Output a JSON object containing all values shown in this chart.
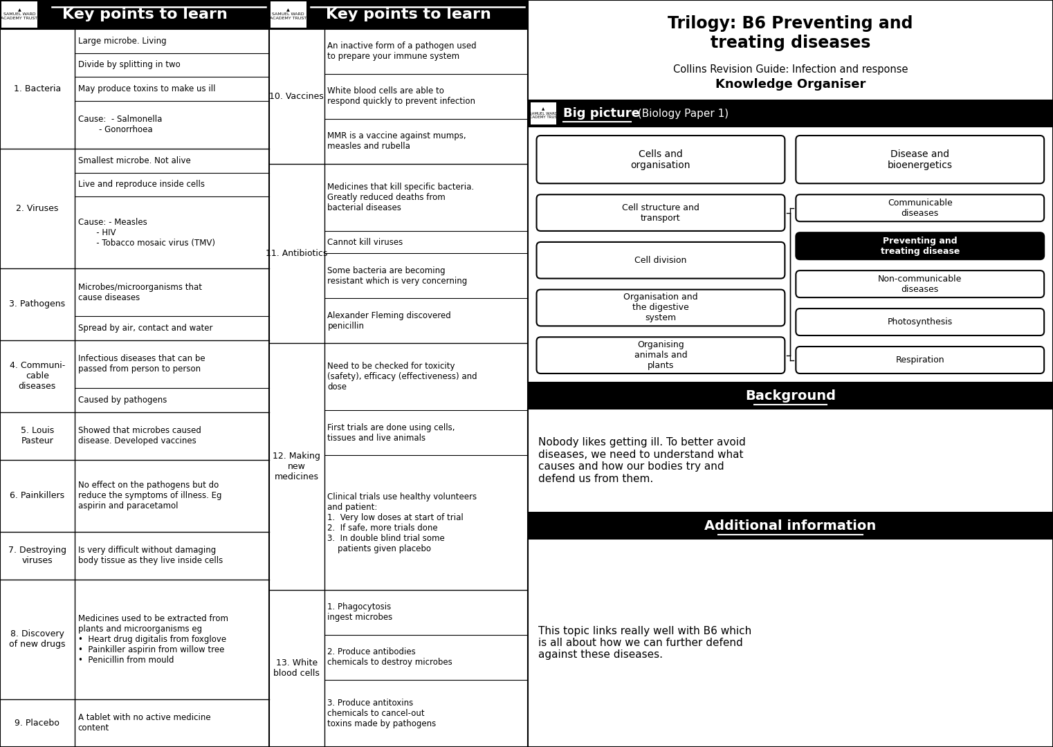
{
  "title_main": "Trilogy: B6 Preventing and\ntreating diseases",
  "title_sub": "Collins Revision Guide: Infection and response",
  "title_ko": "Knowledge Organiser",
  "header_left": "Key points to learn",
  "header_right": "Key points to learn",
  "bg_color": "#ffffff",
  "left_items": [
    {
      "number": "1. Bacteria",
      "facts": [
        "Large microbe. Living",
        "Divide by splitting in two",
        "May produce toxins to make us ill",
        "Cause:  - Salmonella\n        - Gonorrhoea"
      ]
    },
    {
      "number": "2. Viruses",
      "facts": [
        "Smallest microbe. Not alive",
        "Live and reproduce inside cells",
        "Cause: - Measles\n       - HIV\n       - Tobacco mosaic virus (TMV)"
      ]
    },
    {
      "number": "3. Pathogens",
      "facts": [
        "Microbes/microorganisms that\ncause diseases",
        "Spread by air, contact and water"
      ]
    },
    {
      "number": "4. Communi-\ncable\ndiseases",
      "facts": [
        "Infectious diseases that can be\npassed from person to person",
        "Caused by pathogens"
      ]
    },
    {
      "number": "5. Louis\nPasteur",
      "facts": [
        "Showed that microbes caused\ndisease. Developed vaccines"
      ]
    },
    {
      "number": "6. Painkillers",
      "facts": [
        "No effect on the pathogens but do\nreduce the symptoms of illness. Eg\naspirin and paracetamol"
      ]
    },
    {
      "number": "7. Destroying\nviruses",
      "facts": [
        "Is very difficult without damaging\nbody tissue as they live inside cells"
      ]
    },
    {
      "number": "8. Discovery\nof new drugs",
      "facts": [
        "Medicines used to be extracted from\nplants and microorganisms eg\n•  Heart drug digitalis from foxglove\n•  Painkiller aspirin from willow tree\n•  Penicillin from mould"
      ]
    },
    {
      "number": "9. Placebo",
      "facts": [
        "A tablet with no active medicine\ncontent"
      ]
    }
  ],
  "right_items": [
    {
      "number": "10. Vaccines",
      "facts": [
        "An inactive form of a pathogen used\nto prepare your immune system",
        "White blood cells are able to\nrespond quickly to prevent infection",
        "MMR is a vaccine against mumps,\nmeasles and rubella"
      ]
    },
    {
      "number": "11. Antibiotics",
      "facts": [
        "Medicines that kill specific bacteria.\nGreatly reduced deaths from\nbacterial diseases",
        "Cannot kill viruses",
        "Some bacteria are becoming\nresistant which is very concerning",
        "Alexander Fleming discovered\npenicillin"
      ]
    },
    {
      "number": "12. Making\nnew\nmedicines",
      "facts": [
        "Need to be checked for toxicity\n(safety), efficacy (effectiveness) and\ndose",
        "First trials are done using cells,\ntissues and live animals",
        "Clinical trials use healthy volunteers\nand patient:\n1.  Very low doses at start of trial\n2.  If safe, more trials done\n3.  In double blind trial some\n    patients given placebo"
      ]
    },
    {
      "number": "13. White\nblood cells",
      "facts": [
        "1. Phagocytosis\ningest microbes",
        "2. Produce antibodies\nchemicals to destroy microbes",
        "3. Produce antitoxins\nchemicals to cancel-out\ntoxins made by pathogens"
      ]
    }
  ],
  "big_picture_boxes_left": [
    "Cells and\norganisation",
    "Cell structure and\ntransport",
    "Cell division",
    "Organisation and\nthe digestive\nsystem",
    "Organising\nanimals and\nplants"
  ],
  "big_picture_boxes_right": [
    "Disease and\nbioenergetics",
    "Communicable\ndiseases",
    "Preventing and\ntreating disease",
    "Non-communicable\ndiseases",
    "Photosynthesis",
    "Respiration"
  ],
  "big_picture_highlight": "Preventing and\ntreating disease",
  "background_text": "Nobody likes getting ill. To better avoid\ndiseases, we need to understand what\ncauses and how our bodies try and\ndefend us from them.",
  "additional_text": "This topic links really well with B6 which\nis all about how we can further defend\nagainst these diseases."
}
